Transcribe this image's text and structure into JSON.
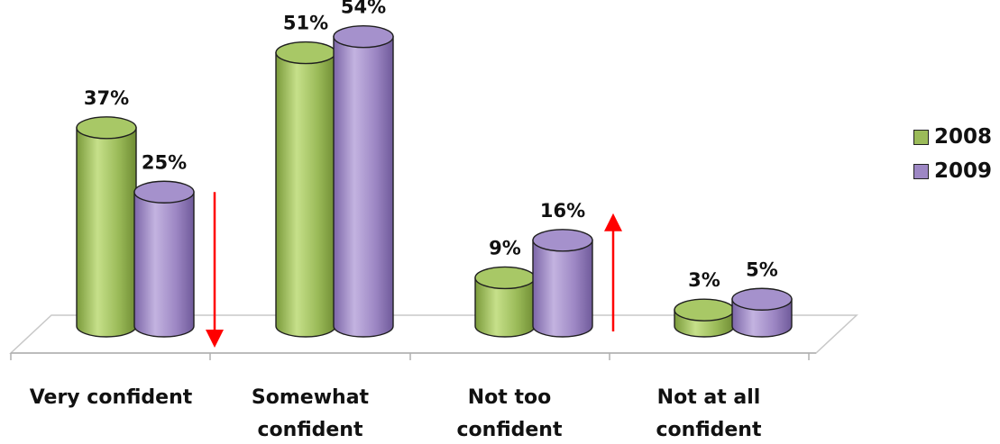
{
  "chart_data": {
    "type": "bar",
    "categories": [
      [
        "Very confident"
      ],
      [
        "Somewhat",
        "confident"
      ],
      [
        "Not too",
        "confident"
      ],
      [
        "Not at all",
        "confident"
      ]
    ],
    "series": [
      {
        "name": "2008",
        "values": [
          37,
          51,
          9,
          3
        ],
        "labels": [
          "37%",
          "51%",
          "9%",
          "3%"
        ],
        "color": "#9bbb59"
      },
      {
        "name": "2009",
        "values": [
          25,
          54,
          16,
          5
        ],
        "labels": [
          "25%",
          "54%",
          "16%",
          "5%"
        ],
        "color": "#9d87c4"
      }
    ],
    "ylim": [
      0,
      60
    ],
    "grid": false,
    "legend": "right",
    "annotations": [
      {
        "type": "arrow",
        "direction": "down",
        "category_index": 0,
        "color": "#ff0000"
      },
      {
        "type": "arrow",
        "direction": "up",
        "category_index": 2,
        "color": "#ff0000"
      }
    ]
  }
}
